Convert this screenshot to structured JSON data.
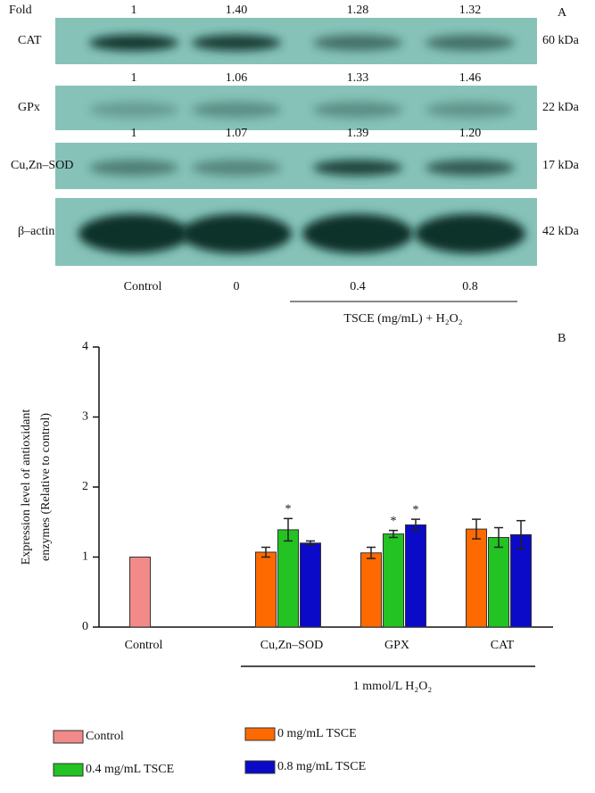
{
  "blot": {
    "panel_label": "A",
    "fold_label": "Fold",
    "rows": [
      {
        "name": "CAT",
        "size": "60 kDa",
        "folds": [
          "1",
          "1.40",
          "1.28",
          "1.32"
        ]
      },
      {
        "name": "GPx",
        "size": "22 kDa",
        "folds": [
          "1",
          "1.06",
          "1.33",
          "1.46"
        ]
      },
      {
        "name": "Cu,Zn–SOD",
        "size": "17 kDa",
        "folds": [
          "1",
          "1.07",
          "1.39",
          "1.20"
        ]
      },
      {
        "name": "β–actin",
        "size": "42 kDa"
      }
    ],
    "lanes": [
      "Control",
      "0",
      "0.4",
      "0.8"
    ],
    "treatment_label": "TSCE (mg/mL) + H₂O₂"
  },
  "chart_data": {
    "type": "bar",
    "panel_label": "B",
    "ylabel_lines": [
      "Expression level of antioxidant",
      "enzymes (Relative to control)"
    ],
    "categories": [
      "Control",
      "Cu,Zn–SOD",
      "GPX",
      "CAT"
    ],
    "group_label": "1 mmol/L H₂O₂",
    "ylim": [
      0,
      4
    ],
    "yticks": [
      0,
      1,
      2,
      3,
      4
    ],
    "series": [
      {
        "name": "Control",
        "color": "#f28a8a",
        "values": [
          1,
          null,
          null,
          null
        ]
      },
      {
        "name": "0 mg/mL TSCE",
        "color": "#ff6a00",
        "values": [
          null,
          1.07,
          1.06,
          1.4
        ],
        "errors": [
          null,
          0.07,
          0.08,
          0.14
        ]
      },
      {
        "name": "0.4 mg/mL TSCE",
        "color": "#22c322",
        "values": [
          null,
          1.39,
          1.33,
          1.28
        ],
        "errors": [
          null,
          0.16,
          0.05,
          0.14
        ],
        "markers": [
          null,
          "*",
          "*",
          null
        ]
      },
      {
        "name": "0.8 mg/mL TSCE",
        "color": "#0a0ac8",
        "values": [
          null,
          1.2,
          1.46,
          1.32
        ],
        "errors": [
          null,
          0.03,
          0.08,
          0.2
        ],
        "markers": [
          null,
          null,
          "*",
          null
        ]
      }
    ]
  }
}
